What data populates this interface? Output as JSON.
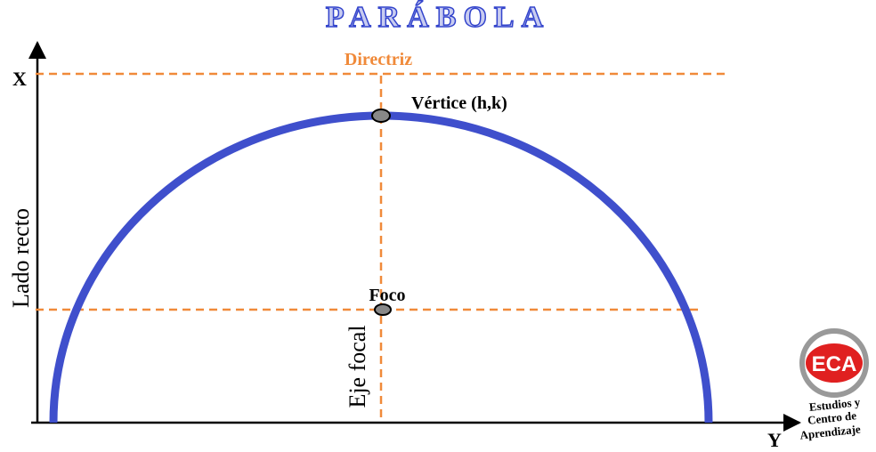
{
  "header": {
    "title": "PARÁBOLA"
  },
  "axes": {
    "x": "X",
    "y": "Y"
  },
  "labels": {
    "directrix": "Directriz",
    "vertex": "Vértice (h,k)",
    "focus": "Foco",
    "latus_rectum": "Lado recto",
    "focal_axis": "Eje focal"
  },
  "logo": {
    "name": "ECA",
    "lines": [
      "Estudios y",
      "Centro de",
      "Aprendizaje"
    ]
  }
}
